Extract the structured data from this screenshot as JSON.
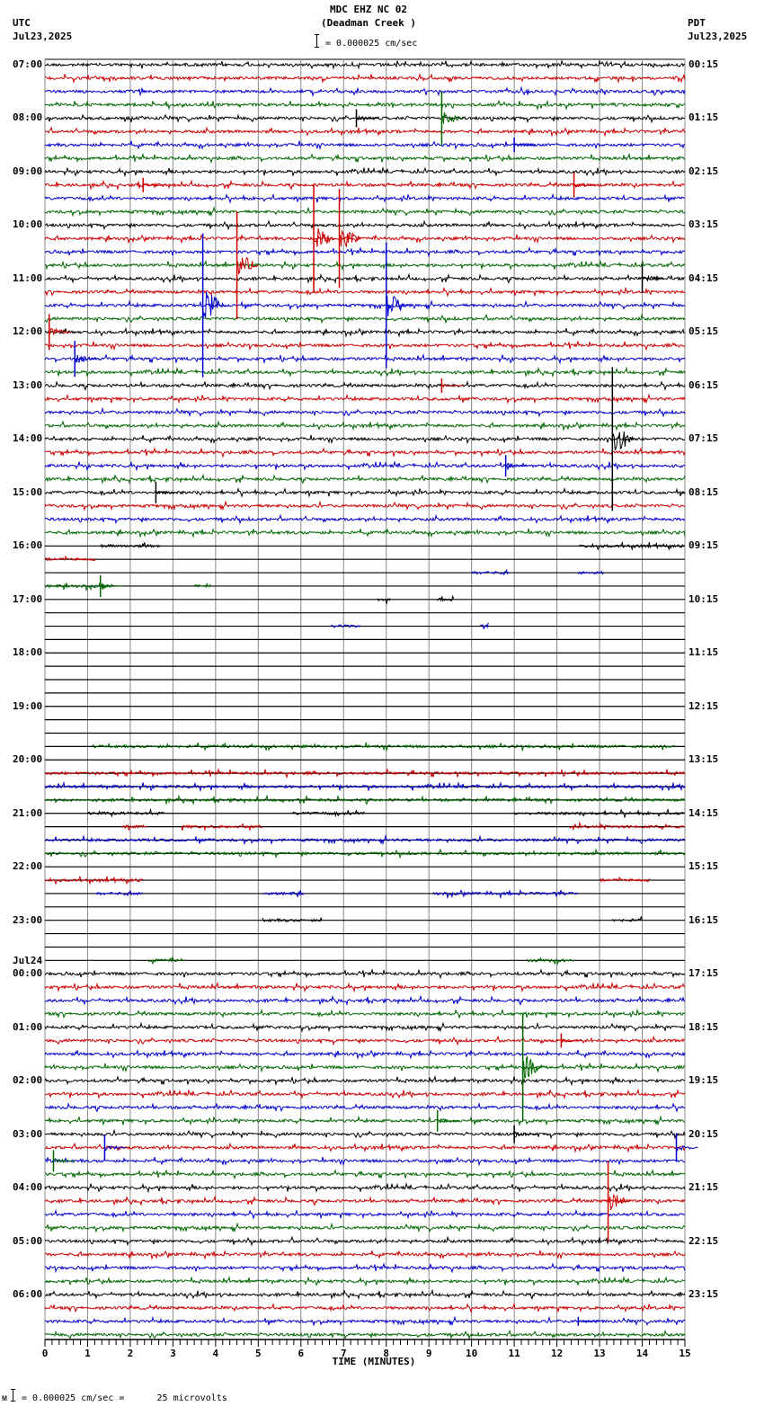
{
  "header": {
    "title": "MDC EHZ NC 02",
    "subtitle": "(Deadman Creek )",
    "left_tz": "UTC",
    "left_date": "Jul23,2025",
    "right_tz": "PDT",
    "right_date": "Jul23,2025",
    "scale_text": "= 0.000025 cm/sec"
  },
  "footer": {
    "scale_text": "= 0.000025 cm/sec =      25 microvolts",
    "x_axis_label": "TIME (MINUTES)"
  },
  "chart_data": {
    "type": "line",
    "title": "MDC EHZ NC 02 (Deadman Creek ) helicorder",
    "xlabel": "TIME (MINUTES)",
    "xlim": [
      0,
      15
    ],
    "x_ticks": [
      "0",
      "1",
      "2",
      "3",
      "4",
      "5",
      "6",
      "7",
      "8",
      "9",
      "10",
      "11",
      "12",
      "13",
      "14",
      "15"
    ],
    "rows_per_hour": 4,
    "row_count": 96,
    "colors": [
      "#000000",
      "#cc0000",
      "#0000cc",
      "#006600"
    ],
    "left_labels": [
      {
        "row": 0,
        "text": "07:00"
      },
      {
        "row": 4,
        "text": "08:00"
      },
      {
        "row": 8,
        "text": "09:00"
      },
      {
        "row": 12,
        "text": "10:00"
      },
      {
        "row": 16,
        "text": "11:00"
      },
      {
        "row": 20,
        "text": "12:00"
      },
      {
        "row": 24,
        "text": "13:00"
      },
      {
        "row": 28,
        "text": "14:00"
      },
      {
        "row": 32,
        "text": "15:00"
      },
      {
        "row": 36,
        "text": "16:00"
      },
      {
        "row": 40,
        "text": "17:00"
      },
      {
        "row": 44,
        "text": "18:00"
      },
      {
        "row": 48,
        "text": "19:00"
      },
      {
        "row": 52,
        "text": "20:00"
      },
      {
        "row": 56,
        "text": "21:00"
      },
      {
        "row": 60,
        "text": "22:00"
      },
      {
        "row": 64,
        "text": "23:00"
      },
      {
        "row": 68,
        "text": "00:00",
        "date": "Jul24"
      },
      {
        "row": 72,
        "text": "01:00"
      },
      {
        "row": 76,
        "text": "02:00"
      },
      {
        "row": 80,
        "text": "03:00"
      },
      {
        "row": 84,
        "text": "04:00"
      },
      {
        "row": 88,
        "text": "05:00"
      },
      {
        "row": 92,
        "text": "06:00"
      }
    ],
    "right_labels": [
      {
        "row": 0,
        "text": "00:15"
      },
      {
        "row": 4,
        "text": "01:15"
      },
      {
        "row": 8,
        "text": "02:15"
      },
      {
        "row": 12,
        "text": "03:15"
      },
      {
        "row": 16,
        "text": "04:15"
      },
      {
        "row": 20,
        "text": "05:15"
      },
      {
        "row": 24,
        "text": "06:15"
      },
      {
        "row": 28,
        "text": "07:15"
      },
      {
        "row": 32,
        "text": "08:15"
      },
      {
        "row": 36,
        "text": "09:15"
      },
      {
        "row": 40,
        "text": "10:15"
      },
      {
        "row": 44,
        "text": "11:15"
      },
      {
        "row": 48,
        "text": "12:15"
      },
      {
        "row": 52,
        "text": "13:15"
      },
      {
        "row": 56,
        "text": "14:15"
      },
      {
        "row": 60,
        "text": "15:15"
      },
      {
        "row": 64,
        "text": "16:15"
      },
      {
        "row": 68,
        "text": "17:15"
      },
      {
        "row": 72,
        "text": "18:15"
      },
      {
        "row": 76,
        "text": "19:15"
      },
      {
        "row": 80,
        "text": "20:15"
      },
      {
        "row": 84,
        "text": "21:15"
      },
      {
        "row": 88,
        "text": "22:15"
      },
      {
        "row": 92,
        "text": "23:15"
      }
    ],
    "quiet_rows": [
      37,
      38,
      39,
      40,
      41,
      42,
      43,
      44,
      45,
      46,
      47,
      48,
      49,
      50,
      51,
      53,
      54,
      55,
      56,
      57,
      58,
      59,
      61,
      62,
      63,
      64,
      65,
      66,
      67
    ],
    "partial_segments": [
      {
        "row": 36,
        "from": 1.3,
        "to": 2.7
      },
      {
        "row": 36,
        "from": 12.5,
        "to": 15
      },
      {
        "row": 37,
        "from": 0,
        "to": 1.2
      },
      {
        "row": 38,
        "from": 10,
        "to": 10.9
      },
      {
        "row": 38,
        "from": 12.5,
        "to": 13.1
      },
      {
        "row": 39,
        "from": 0,
        "to": 1.6
      },
      {
        "row": 39,
        "from": 3.5,
        "to": 3.9
      },
      {
        "row": 40,
        "from": 7.8,
        "to": 8.1
      },
      {
        "row": 40,
        "from": 9.2,
        "to": 9.6
      },
      {
        "row": 42,
        "from": 6.7,
        "to": 7.4
      },
      {
        "row": 42,
        "from": 10.2,
        "to": 10.4
      },
      {
        "row": 51,
        "from": 1.1,
        "to": 14.8
      },
      {
        "row": 53,
        "from": 0,
        "to": 15
      },
      {
        "row": 54,
        "from": 0,
        "to": 15
      },
      {
        "row": 55,
        "from": 0,
        "to": 15
      },
      {
        "row": 56,
        "from": 1.0,
        "to": 2.8
      },
      {
        "row": 56,
        "from": 5.8,
        "to": 7.5
      },
      {
        "row": 56,
        "from": 11,
        "to": 15
      },
      {
        "row": 57,
        "from": 1.8,
        "to": 2.4
      },
      {
        "row": 57,
        "from": 3.2,
        "to": 5.1
      },
      {
        "row": 57,
        "from": 12.3,
        "to": 15
      },
      {
        "row": 58,
        "from": 0,
        "to": 15
      },
      {
        "row": 59,
        "from": 0,
        "to": 15
      },
      {
        "row": 61,
        "from": 0,
        "to": 2.3
      },
      {
        "row": 61,
        "from": 13.0,
        "to": 14.2
      },
      {
        "row": 62,
        "from": 1.2,
        "to": 2.3
      },
      {
        "row": 62,
        "from": 5.1,
        "to": 6.1
      },
      {
        "row": 62,
        "from": 9.1,
        "to": 12.5
      },
      {
        "row": 64,
        "from": 5.1,
        "to": 6.5
      },
      {
        "row": 64,
        "from": 13.3,
        "to": 14
      },
      {
        "row": 67,
        "from": 2.4,
        "to": 3.3
      },
      {
        "row": 67,
        "from": 11.3,
        "to": 12.4
      }
    ],
    "events": [
      {
        "row": 4,
        "x": 7.3,
        "amp": 10,
        "color": "#000"
      },
      {
        "row": 4,
        "x": 9.3,
        "amp": 30,
        "color": "#006600"
      },
      {
        "row": 6,
        "x": 11.0,
        "amp": 8,
        "color": "#0000cc"
      },
      {
        "row": 9,
        "x": 2.3,
        "amp": 8,
        "color": "#cc0000"
      },
      {
        "row": 9,
        "x": 12.4,
        "amp": 14,
        "color": "#cc0000"
      },
      {
        "row": 13,
        "x": 6.3,
        "amp": 60,
        "color": "#cc0000"
      },
      {
        "row": 13,
        "x": 6.9,
        "amp": 55,
        "color": "#cc0000"
      },
      {
        "row": 15,
        "x": 4.5,
        "amp": 60,
        "color": "#cc0000"
      },
      {
        "row": 16,
        "x": 14.0,
        "amp": 16,
        "color": "#000"
      },
      {
        "row": 18,
        "x": 3.7,
        "amp": 80,
        "color": "#0000cc"
      },
      {
        "row": 18,
        "x": 8.0,
        "amp": 70,
        "color": "#0000cc"
      },
      {
        "row": 20,
        "x": 0.1,
        "amp": 20,
        "color": "#cc0000"
      },
      {
        "row": 22,
        "x": 0.7,
        "amp": 20,
        "color": "#0000cc"
      },
      {
        "row": 24,
        "x": 9.3,
        "amp": 8,
        "color": "#cc0000"
      },
      {
        "row": 28,
        "x": 13.3,
        "amp": 80,
        "color": "#000"
      },
      {
        "row": 32,
        "x": 2.6,
        "amp": 12,
        "color": "#000"
      },
      {
        "row": 30,
        "x": 10.8,
        "amp": 12,
        "color": "#0000cc"
      },
      {
        "row": 39,
        "x": 1.3,
        "amp": 12,
        "color": "#006600"
      },
      {
        "row": 73,
        "x": 12.1,
        "amp": 8,
        "color": "#cc0000"
      },
      {
        "row": 75,
        "x": 11.2,
        "amp": 60,
        "color": "#006600"
      },
      {
        "row": 79,
        "x": 9.2,
        "amp": 12,
        "color": "#006600"
      },
      {
        "row": 80,
        "x": 11.0,
        "amp": 10,
        "color": "#000"
      },
      {
        "row": 81,
        "x": 1.4,
        "amp": 14,
        "color": "#0000cc"
      },
      {
        "row": 81,
        "x": 14.8,
        "amp": 16,
        "color": "#0000cc"
      },
      {
        "row": 82,
        "x": 0.2,
        "amp": 12,
        "color": "#006600"
      },
      {
        "row": 85,
        "x": 13.2,
        "amp": 45,
        "color": "#cc0000"
      },
      {
        "row": 94,
        "x": 12.5,
        "amp": 5,
        "color": "#0000cc"
      }
    ]
  }
}
